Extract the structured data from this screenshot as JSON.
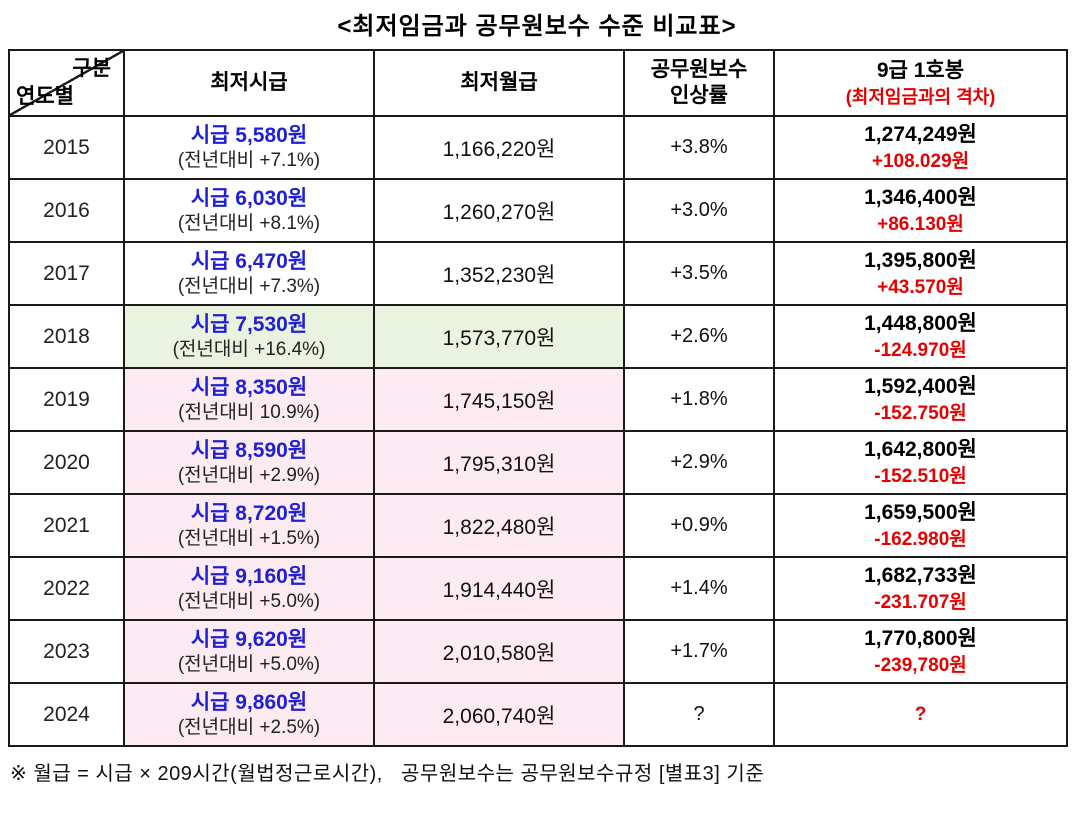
{
  "title": "<최저임금과 공무원보수 수준 비교표>",
  "colors": {
    "blue": "#1f1fd6",
    "red": "#e60000",
    "green_bg": "#eaf3e0",
    "pink_bg": "#fcebf2"
  },
  "table": {
    "header": {
      "corner_top": "구분",
      "corner_bottom": "연도별",
      "col_hourly": "최저시급",
      "col_monthly": "최저월급",
      "col_rate_line1": "공무원보수",
      "col_rate_line2": "인상률",
      "col_grade9": "9급 1호봉",
      "col_grade9_sub": "(최저임금과의 격차)"
    },
    "rows": [
      {
        "year": "2015",
        "hourly": "시급 5,580원",
        "hourly_sub": "(전년대비 +7.1%)",
        "monthly": "1,166,220원",
        "rate": "+3.8%",
        "grade9": "1,274,249원",
        "gap": "+108.029원",
        "highlight": "none"
      },
      {
        "year": "2016",
        "hourly": "시급 6,030원",
        "hourly_sub": "(전년대비 +8.1%)",
        "monthly": "1,260,270원",
        "rate": "+3.0%",
        "grade9": "1,346,400원",
        "gap": "+86.130원",
        "highlight": "none"
      },
      {
        "year": "2017",
        "hourly": "시급 6,470원",
        "hourly_sub": "(전년대비 +7.3%)",
        "monthly": "1,352,230원",
        "rate": "+3.5%",
        "grade9": "1,395,800원",
        "gap": "+43.570원",
        "highlight": "none"
      },
      {
        "year": "2018",
        "hourly": "시급 7,530원",
        "hourly_sub": "(전년대비 +16.4%)",
        "monthly": "1,573,770원",
        "rate": "+2.6%",
        "grade9": "1,448,800원",
        "gap": "-124.970원",
        "highlight": "green"
      },
      {
        "year": "2019",
        "hourly": "시급 8,350원",
        "hourly_sub": "(전년대비 10.9%)",
        "monthly": "1,745,150원",
        "rate": "+1.8%",
        "grade9": "1,592,400원",
        "gap": "-152.750원",
        "highlight": "pink"
      },
      {
        "year": "2020",
        "hourly": "시급 8,590원",
        "hourly_sub": "(전년대비 +2.9%)",
        "monthly": "1,795,310원",
        "rate": "+2.9%",
        "grade9": "1,642,800원",
        "gap": "-152.510원",
        "highlight": "pink"
      },
      {
        "year": "2021",
        "hourly": "시급 8,720원",
        "hourly_sub": "(전년대비 +1.5%)",
        "monthly": "1,822,480원",
        "rate": "+0.9%",
        "grade9": "1,659,500원",
        "gap": "-162.980원",
        "highlight": "pink"
      },
      {
        "year": "2022",
        "hourly": "시급 9,160원",
        "hourly_sub": "(전년대비 +5.0%)",
        "monthly": "1,914,440원",
        "rate": "+1.4%",
        "grade9": "1,682,733원",
        "gap": "-231.707원",
        "highlight": "pink"
      },
      {
        "year": "2023",
        "hourly": "시급 9,620원",
        "hourly_sub": "(전년대비 +5.0%)",
        "monthly": "2,010,580원",
        "rate": "+1.7%",
        "grade9": "1,770,800원",
        "gap": "-239,780원",
        "highlight": "pink"
      },
      {
        "year": "2024",
        "hourly": "시급 9,860원",
        "hourly_sub": "(전년대비 +2.5%)",
        "monthly": "2,060,740원",
        "rate": "?",
        "grade9": "",
        "gap": "?",
        "highlight": "pink"
      }
    ]
  },
  "footnote": "※ 월급 = 시급 × 209시간(월법정근로시간),   공무원보수는 공무원보수규정 [별표3] 기준"
}
